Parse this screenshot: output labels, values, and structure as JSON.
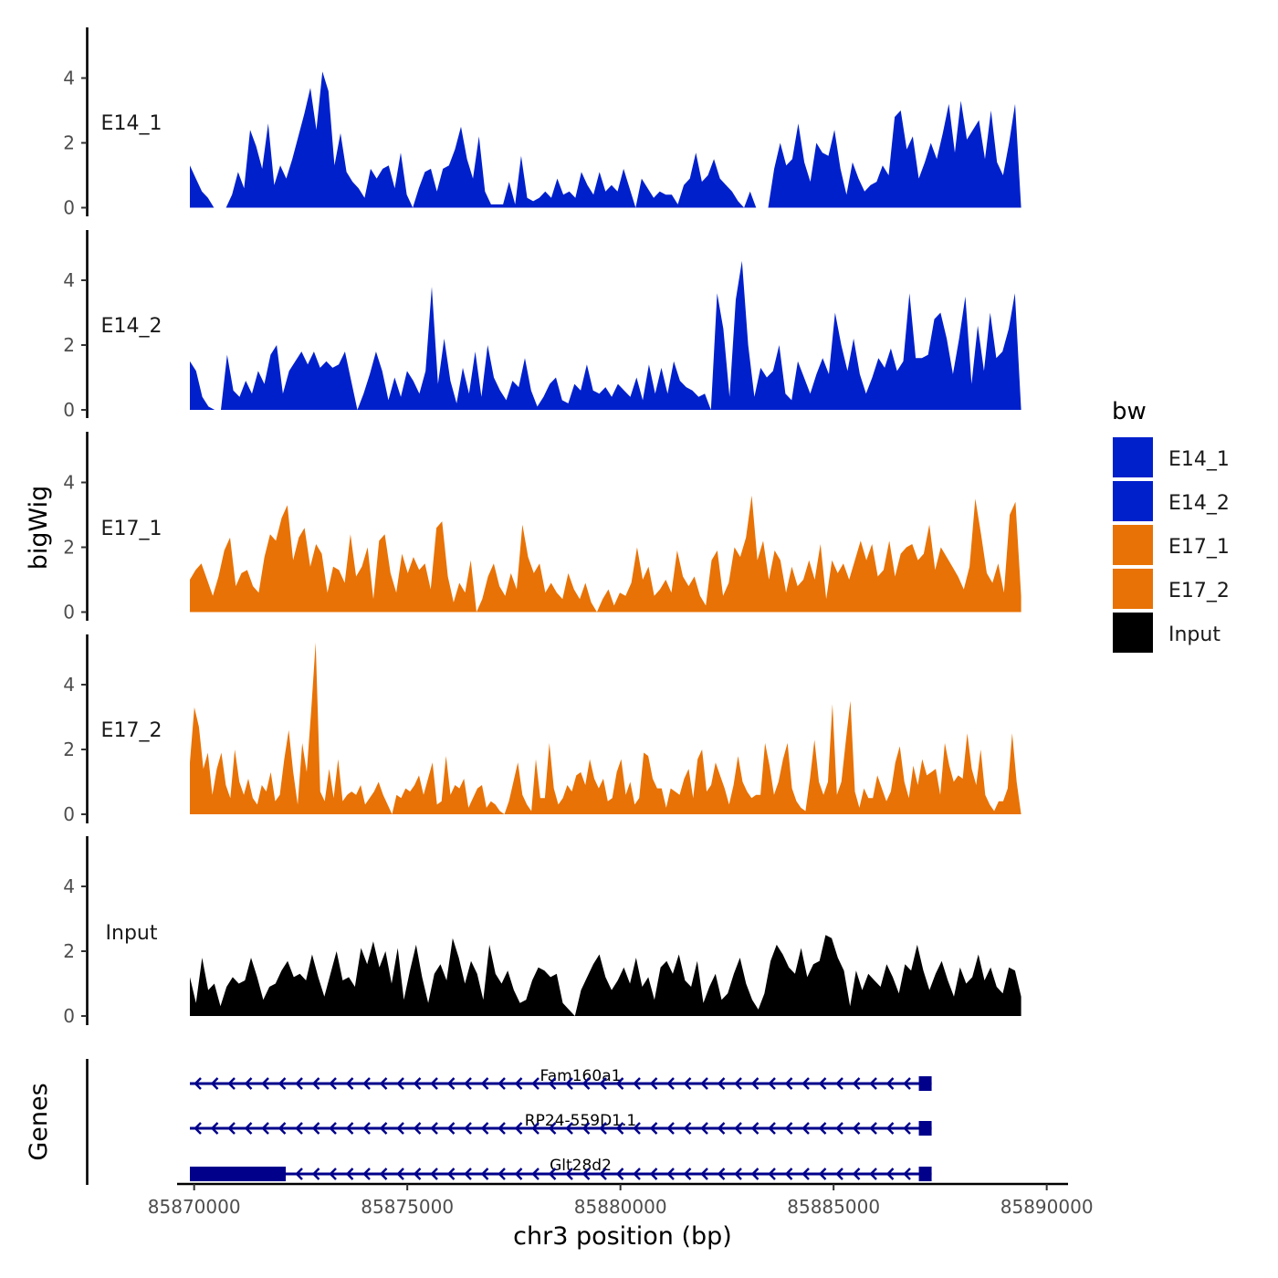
{
  "chart_data": {
    "type": "area",
    "chromosome": "chr3",
    "xlabel": "chr3 position (bp)",
    "ylabel": "bigWig",
    "genes_label": "Genes",
    "xlim": [
      85869600,
      85890500
    ],
    "xticks": [
      85870000,
      85875000,
      85880000,
      85885000,
      85890000
    ],
    "xtick_labels": [
      "85870000",
      "85875000",
      "85880000",
      "85885000",
      "85890000"
    ],
    "ylim": [
      0,
      5.5
    ],
    "yticks": [
      0,
      2,
      4
    ],
    "ytick_labels": [
      "0",
      "2",
      "4"
    ],
    "x_start": 85869900,
    "x_end": 85889400,
    "legend": {
      "title": "bw",
      "entries": [
        {
          "label": "E14_1",
          "color": "#0020CC"
        },
        {
          "label": "E14_2",
          "color": "#0020CC"
        },
        {
          "label": "E17_1",
          "color": "#E87205"
        },
        {
          "label": "E17_2",
          "color": "#E87205"
        },
        {
          "label": "Input",
          "color": "#000000"
        }
      ]
    },
    "series": [
      {
        "name": "E14_1",
        "color": "#0020CC",
        "values": [
          1.3,
          0.9,
          0.5,
          0.3,
          0,
          0,
          0,
          0.4,
          1.1,
          0.6,
          2.4,
          1.9,
          1.2,
          2.6,
          0.7,
          1.3,
          0.9,
          1.5,
          2.2,
          2.9,
          3.7,
          2.4,
          4.2,
          3.6,
          1.3,
          2.3,
          1.1,
          0.8,
          0.6,
          0.3,
          1.2,
          0.9,
          1.2,
          1.3,
          0.6,
          1.7,
          0.4,
          0,
          0.6,
          1.1,
          1.2,
          0.5,
          1.2,
          1.3,
          1.8,
          2.5,
          1.5,
          0.9,
          2.2,
          0.5,
          0.1,
          0.1,
          0.1,
          0.8,
          0.1,
          1.6,
          0.3,
          0.2,
          0.3,
          0.5,
          0.3,
          0.9,
          0.4,
          0.5,
          0.3,
          1.1,
          0.7,
          0.4,
          1.1,
          0.5,
          0.7,
          0.5,
          1.2,
          0.6,
          0,
          0.9,
          0.6,
          0.3,
          0.5,
          0.4,
          0.4,
          0.1,
          0.7,
          0.9,
          1.7,
          0.8,
          1.0,
          1.5,
          0.9,
          0.7,
          0.5,
          0.2,
          0,
          0.5,
          0,
          0,
          0,
          1.2,
          2.0,
          1.3,
          1.5,
          2.6,
          1.4,
          0.8,
          2.0,
          1.7,
          1.6,
          2.4,
          1.2,
          0.4,
          1.4,
          0.9,
          0.5,
          0.7,
          0.8,
          1.3,
          1.0,
          2.8,
          3.0,
          1.8,
          2.2,
          0.9,
          1.4,
          2.0,
          1.5,
          2.3,
          3.2,
          1.7,
          3.3,
          2.1,
          2.4,
          2.7,
          1.5,
          3.0,
          1.4,
          1.0,
          2.0,
          3.2,
          0
        ]
      },
      {
        "name": "E14_2",
        "color": "#0020CC",
        "values": [
          1.5,
          1.2,
          0.4,
          0.1,
          0,
          0,
          1.7,
          0.6,
          0.4,
          0.9,
          0.5,
          1.2,
          0.8,
          1.7,
          2.0,
          0.5,
          1.2,
          1.5,
          1.8,
          1.4,
          1.8,
          1.3,
          1.5,
          1.3,
          1.4,
          1.8,
          0.9,
          0,
          0.5,
          1.1,
          1.8,
          1.2,
          0.3,
          1.0,
          0.4,
          1.2,
          0.9,
          0.5,
          1.2,
          3.8,
          0.8,
          2.2,
          0.9,
          0.2,
          1.3,
          0.5,
          1.8,
          0.4,
          2.0,
          1.0,
          0.6,
          0.3,
          0.9,
          0.7,
          1.6,
          0.6,
          0.1,
          0.4,
          0.8,
          1.0,
          0.3,
          0.2,
          0.8,
          0.6,
          1.4,
          0.6,
          0.5,
          0.7,
          0.4,
          0.8,
          0.6,
          0.4,
          1.0,
          0.3,
          1.4,
          0.5,
          1.3,
          0.5,
          1.5,
          0.9,
          0.7,
          0.6,
          0.4,
          0.5,
          0,
          3.6,
          2.5,
          0.4,
          3.4,
          4.6,
          2.0,
          0.4,
          1.3,
          1.0,
          1.2,
          2.0,
          0.5,
          0.3,
          1.5,
          1.0,
          0.5,
          1.1,
          1.6,
          1.1,
          3.0,
          2.0,
          1.2,
          2.2,
          1.1,
          0.5,
          1.0,
          1.6,
          1.3,
          1.9,
          1.2,
          1.5,
          3.6,
          1.6,
          1.6,
          1.7,
          2.8,
          3.0,
          2.2,
          1.1,
          2.2,
          3.5,
          0.8,
          2.6,
          1.2,
          3.0,
          1.6,
          1.8,
          2.5,
          3.6,
          0
        ]
      },
      {
        "name": "E17_1",
        "color": "#E87205",
        "values": [
          1.0,
          1.3,
          1.5,
          1.0,
          0.5,
          1.1,
          1.9,
          2.3,
          0.8,
          1.2,
          1.3,
          0.8,
          0.6,
          1.7,
          2.4,
          2.2,
          2.9,
          3.3,
          1.6,
          2.3,
          2.6,
          1.4,
          2.1,
          1.8,
          0.6,
          1.4,
          1.3,
          0.9,
          2.4,
          1.1,
          1.4,
          2.0,
          0.4,
          2.2,
          2.4,
          1.2,
          0.6,
          1.8,
          1.2,
          1.7,
          1.3,
          1.5,
          0.7,
          2.6,
          2.8,
          1.1,
          0.3,
          0.9,
          0.6,
          1.6,
          0,
          0.4,
          1.1,
          1.5,
          0.8,
          0.5,
          1.2,
          0.7,
          2.7,
          1.7,
          1.2,
          1.5,
          0.6,
          0.9,
          0.6,
          0.4,
          1.2,
          0.7,
          0.4,
          0.9,
          0.3,
          0,
          0.4,
          0.7,
          0.2,
          0.6,
          0.5,
          0.9,
          2.0,
          1.0,
          1.4,
          0.5,
          0.7,
          1.0,
          0.6,
          1.9,
          1.1,
          0.8,
          1.1,
          0.5,
          0.2,
          1.6,
          1.9,
          0.5,
          0.9,
          2.0,
          1.7,
          2.3,
          3.6,
          1.6,
          2.2,
          1.0,
          1.9,
          1.6,
          0.6,
          1.4,
          0.8,
          1.0,
          1.6,
          1.0,
          2.1,
          0.4,
          1.6,
          1.2,
          1.5,
          1.0,
          1.6,
          2.2,
          1.6,
          2.1,
          1.1,
          1.3,
          2.2,
          1.1,
          1.8,
          2.0,
          2.1,
          1.6,
          1.8,
          2.7,
          1.3,
          2.0,
          1.7,
          1.4,
          1.1,
          0.7,
          1.4,
          3.5,
          2.4,
          1.2,
          0.9,
          1.5,
          0.6,
          3.0,
          3.4,
          0.5
        ]
      },
      {
        "name": "E17_2",
        "color": "#E87205",
        "values": [
          1.6,
          3.3,
          2.7,
          1.4,
          1.9,
          0.6,
          1.4,
          1.9,
          0.9,
          0.5,
          2.0,
          1.0,
          0.6,
          1.1,
          0.5,
          0.3,
          0.9,
          0.7,
          1.3,
          0.4,
          0.6,
          1.7,
          2.6,
          1.3,
          0.3,
          2.2,
          1.3,
          3.2,
          5.3,
          0.7,
          0.4,
          1.4,
          0.5,
          1.7,
          0.4,
          0.6,
          0.7,
          0.6,
          0.9,
          0.3,
          0.5,
          0.7,
          1.0,
          0.6,
          0.3,
          0,
          0.6,
          0.5,
          0.8,
          0.7,
          0.9,
          1.2,
          0.6,
          1.1,
          1.6,
          0.3,
          0.4,
          1.8,
          0.6,
          0.9,
          0.8,
          1.1,
          0.2,
          0.5,
          0.8,
          0.9,
          0.2,
          0.4,
          0.3,
          0.1,
          0,
          0.4,
          1.0,
          1.6,
          0.6,
          0.3,
          0.1,
          1.7,
          0.5,
          0.5,
          2.2,
          0.8,
          0.3,
          0.5,
          0.9,
          0.7,
          1.2,
          1.3,
          0.9,
          1.7,
          1.1,
          0.8,
          1.1,
          0.4,
          0.5,
          1.3,
          1.7,
          0.6,
          1.0,
          0.3,
          0.5,
          1.9,
          1.8,
          1.1,
          0.8,
          0.8,
          0.2,
          0.8,
          0.7,
          0.6,
          1.1,
          1.4,
          0.5,
          1.7,
          2.0,
          0.7,
          0.9,
          1.6,
          1.2,
          0.8,
          0.3,
          0.9,
          1.8,
          1.0,
          0.7,
          0.5,
          0.6,
          0.6,
          2.2,
          1.5,
          0.6,
          1.0,
          1.7,
          2.2,
          0.8,
          0.4,
          0.2,
          0.1,
          1.1,
          2.3,
          1.0,
          0.6,
          1.0,
          3.4,
          0.6,
          1.0,
          2.3,
          3.5,
          0.7,
          0.2,
          0.8,
          0.5,
          0.5,
          1.2,
          0.8,
          0.4,
          0.7,
          1.6,
          2.1,
          1.0,
          0.5,
          1.5,
          0.9,
          1.7,
          1.2,
          1.3,
          1.4,
          0.6,
          2.2,
          1.5,
          1.0,
          1.2,
          1.1,
          2.5,
          1.4,
          0.9,
          2.0,
          0.6,
          0.3,
          0.1,
          0.4,
          0.4,
          0.8,
          2.5,
          1.0,
          0
        ]
      },
      {
        "name": "Input",
        "color": "#000000",
        "values": [
          1.2,
          0.4,
          1.8,
          0.8,
          1.0,
          0.3,
          0.9,
          1.2,
          1.0,
          1.1,
          1.8,
          1.2,
          0.5,
          0.9,
          1.0,
          1.4,
          1.7,
          1.2,
          1.3,
          1.1,
          1.9,
          1.2,
          0.6,
          1.3,
          2.0,
          1.1,
          1.2,
          0.9,
          2.1,
          1.6,
          2.3,
          1.5,
          2.0,
          1.0,
          2.1,
          0.5,
          1.4,
          2.2,
          1.2,
          0.4,
          1.3,
          1.6,
          1.1,
          2.4,
          1.8,
          1.0,
          1.7,
          1.3,
          0.5,
          2.2,
          1.3,
          1.0,
          1.4,
          0.8,
          0.4,
          0.5,
          1.1,
          1.5,
          1.4,
          1.2,
          1.3,
          0.4,
          0.2,
          0,
          0.8,
          1.2,
          1.6,
          1.9,
          1.2,
          0.8,
          1.1,
          1.5,
          1.0,
          1.8,
          0.9,
          1.2,
          0.5,
          1.5,
          1.7,
          1.3,
          1.9,
          1.1,
          0.9,
          1.7,
          0.4,
          0.9,
          1.3,
          0.5,
          0.7,
          1.3,
          1.8,
          1.0,
          0.5,
          0.2,
          0.7,
          1.7,
          2.2,
          1.9,
          1.5,
          1.3,
          2.1,
          1.2,
          1.6,
          1.7,
          2.5,
          2.4,
          1.8,
          1.4,
          0.3,
          1.4,
          0.8,
          1.3,
          1.1,
          0.9,
          1.6,
          1.2,
          0.7,
          1.6,
          1.4,
          2.2,
          1.4,
          0.8,
          1.3,
          1.7,
          1.1,
          0.6,
          1.5,
          1.0,
          1.2,
          1.9,
          1.1,
          1.5,
          0.9,
          0.7,
          1.5,
          1.4,
          0.6
        ]
      }
    ],
    "genes": [
      {
        "name": "Fam160a1",
        "strand": "-",
        "start": 85869900,
        "end": 85887300,
        "exons": [
          [
            85887000,
            85887300
          ]
        ]
      },
      {
        "name": "RP24-559D1.1",
        "strand": "-",
        "start": 85869900,
        "end": 85887300,
        "exons": [
          [
            85887000,
            85887300
          ]
        ]
      },
      {
        "name": "Glt28d2",
        "strand": "-",
        "start": 85869900,
        "end": 85887300,
        "exons": [
          [
            85869900,
            85872150
          ],
          [
            85887000,
            85887300
          ]
        ]
      }
    ]
  }
}
